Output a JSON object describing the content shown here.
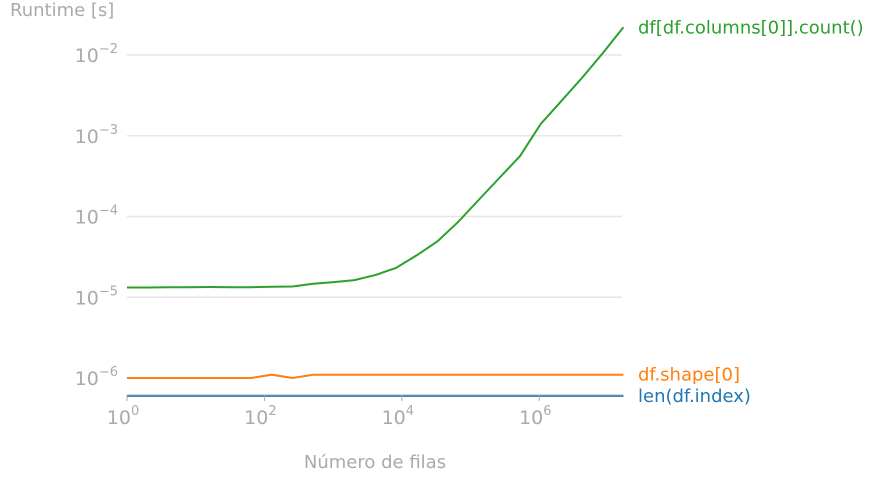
{
  "chart_data": {
    "type": "line",
    "title": "",
    "xlabel": "Número de filas",
    "ylabel": "Runtime [s]",
    "xscale": "log",
    "yscale": "log",
    "xlim": [
      1,
      16000000
    ],
    "ylim": [
      6e-07,
      0.025
    ],
    "grid": "horizontal",
    "legend": "inline labels at right end of each line",
    "x_ticks": [
      {
        "value": 1,
        "base": "10",
        "exp": "0"
      },
      {
        "value": 100,
        "base": "10",
        "exp": "2"
      },
      {
        "value": 10000,
        "base": "10",
        "exp": "4"
      },
      {
        "value": 1000000,
        "base": "10",
        "exp": "6"
      }
    ],
    "y_ticks": [
      {
        "value": 1e-06,
        "base": "10",
        "exp": "−6"
      },
      {
        "value": 1e-05,
        "base": "10",
        "exp": "−5"
      },
      {
        "value": 0.0001,
        "base": "10",
        "exp": "−4"
      },
      {
        "value": 0.001,
        "base": "10",
        "exp": "−3"
      },
      {
        "value": 0.01,
        "base": "10",
        "exp": "−2"
      }
    ],
    "series": [
      {
        "name": "df[df.columns[0]].count()",
        "color": "#2ca02c",
        "points": [
          [
            1,
            1.32e-05
          ],
          [
            2,
            1.32e-05
          ],
          [
            4,
            1.33e-05
          ],
          [
            8,
            1.33e-05
          ],
          [
            16,
            1.34e-05
          ],
          [
            32,
            1.33e-05
          ],
          [
            64,
            1.33e-05
          ],
          [
            128,
            1.35e-05
          ],
          [
            256,
            1.36e-05
          ],
          [
            512,
            1.47e-05
          ],
          [
            1024,
            1.54e-05
          ],
          [
            2048,
            1.63e-05
          ],
          [
            4096,
            1.88e-05
          ],
          [
            8192,
            2.3e-05
          ],
          [
            16384,
            3.3e-05
          ],
          [
            32768,
            4.9e-05
          ],
          [
            65536,
            8.5e-05
          ],
          [
            131072,
            0.00016
          ],
          [
            262144,
            0.0003
          ],
          [
            524288,
            0.00056
          ],
          [
            1048576,
            0.0014
          ],
          [
            2097152,
            0.0027
          ],
          [
            4194304,
            0.0052
          ],
          [
            8388608,
            0.0105
          ],
          [
            16777216,
            0.022
          ]
        ]
      },
      {
        "name": "df.shape[0]",
        "color": "#ff7f0e",
        "points": [
          [
            1,
            1e-06
          ],
          [
            2,
            1e-06
          ],
          [
            4,
            1e-06
          ],
          [
            8,
            1e-06
          ],
          [
            16,
            1e-06
          ],
          [
            32,
            1e-06
          ],
          [
            64,
            1e-06
          ],
          [
            128,
            1.1e-06
          ],
          [
            256,
            1e-06
          ],
          [
            512,
            1.1e-06
          ],
          [
            1024,
            1.1e-06
          ],
          [
            4096,
            1.1e-06
          ],
          [
            16384,
            1.1e-06
          ],
          [
            65536,
            1.1e-06
          ],
          [
            262144,
            1.1e-06
          ],
          [
            1048576,
            1.1e-06
          ],
          [
            4194304,
            1.1e-06
          ],
          [
            16777216,
            1.1e-06
          ]
        ]
      },
      {
        "name": "len(df.index)",
        "color": "#1f77b4",
        "points": [
          [
            1,
            6e-07
          ],
          [
            16777216,
            6e-07
          ]
        ]
      }
    ]
  }
}
